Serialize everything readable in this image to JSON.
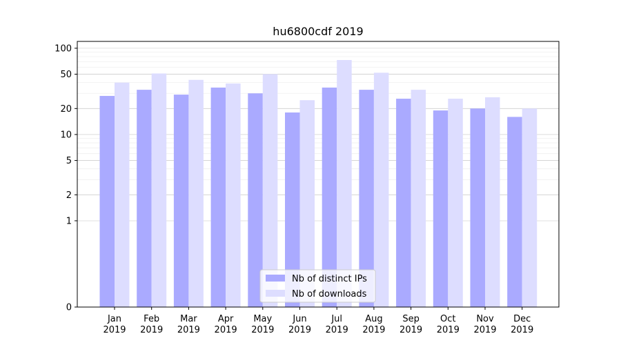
{
  "chart_data": {
    "type": "bar",
    "title": "hu6800cdf 2019",
    "xlabel": "",
    "ylabel": "",
    "yscale": "symlog",
    "ylim": [
      0,
      120
    ],
    "yticks": [
      0,
      1,
      2,
      5,
      10,
      20,
      50,
      100
    ],
    "grid": true,
    "legend_position": "lower center",
    "categories": [
      {
        "month": "Jan",
        "year": "2019"
      },
      {
        "month": "Feb",
        "year": "2019"
      },
      {
        "month": "Mar",
        "year": "2019"
      },
      {
        "month": "Apr",
        "year": "2019"
      },
      {
        "month": "May",
        "year": "2019"
      },
      {
        "month": "Jun",
        "year": "2019"
      },
      {
        "month": "Jul",
        "year": "2019"
      },
      {
        "month": "Aug",
        "year": "2019"
      },
      {
        "month": "Sep",
        "year": "2019"
      },
      {
        "month": "Oct",
        "year": "2019"
      },
      {
        "month": "Nov",
        "year": "2019"
      },
      {
        "month": "Dec",
        "year": "2019"
      }
    ],
    "series": [
      {
        "name": "Nb of distinct IPs",
        "color": "#aaaaff",
        "values": [
          28,
          33,
          29,
          35,
          30,
          18,
          35,
          33,
          26,
          19,
          20,
          16
        ]
      },
      {
        "name": "Nb of downloads",
        "color": "#ddddff",
        "values": [
          40,
          51,
          43,
          39,
          50,
          25,
          73,
          52,
          33,
          26,
          27,
          20
        ]
      }
    ]
  }
}
